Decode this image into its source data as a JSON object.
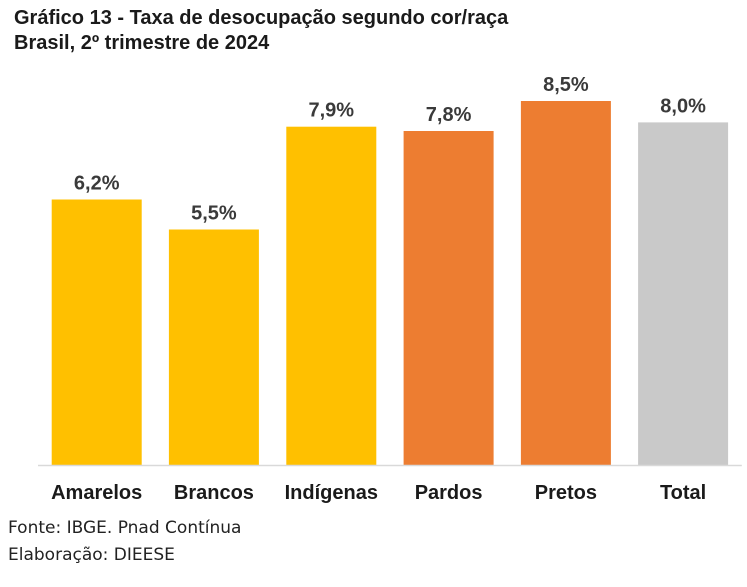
{
  "title_line1": "Gráfico 13 - Taxa de desocupação segundo cor/raça",
  "title_line2": "Brasil, 2º trimestre de 2024",
  "chart_data": {
    "type": "bar",
    "title": "Gráfico 13 - Taxa de desocupação segundo cor/raça",
    "subtitle": "Brasil, 2º trimestre de 2024",
    "categories": [
      "Amarelos",
      "Brancos",
      "Indígenas",
      "Pardos",
      "Pretos",
      "Total"
    ],
    "values": [
      6.2,
      5.5,
      7.9,
      7.8,
      8.5,
      8.0
    ],
    "data_labels": [
      "6,2%",
      "5,5%",
      "7,9%",
      "7,8%",
      "8,5%",
      "8,0%"
    ],
    "colors": [
      "#FFC000",
      "#FFC000",
      "#FFC000",
      "#ED7D31",
      "#ED7D31",
      "#C9C9C9"
    ],
    "xlabel": "",
    "ylabel": "",
    "ylim": [
      0,
      8.5
    ],
    "grid": false,
    "legend": "none"
  },
  "footer": {
    "source": "Fonte: IBGE. Pnad Contínua",
    "credit": "Elaboração: DIEESE"
  }
}
